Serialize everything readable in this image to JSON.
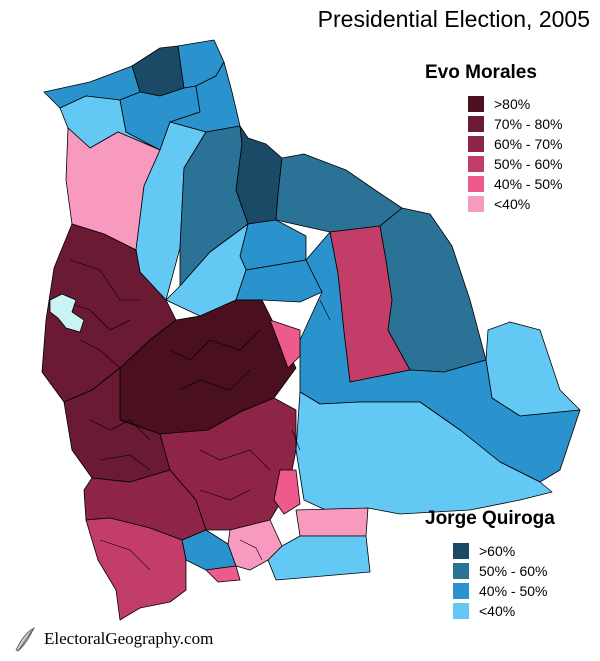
{
  "title": "Presidential Election, 2005",
  "morales": {
    "heading": "Evo Morales",
    "items": [
      {
        "label": ">80%",
        "color": "#4a1020"
      },
      {
        "label": "70% - 80%",
        "color": "#6b1a34"
      },
      {
        "label": "60% - 70%",
        "color": "#8e2446"
      },
      {
        "label": "50% - 60%",
        "color": "#c23e68"
      },
      {
        "label": "40% - 50%",
        "color": "#ef5a8c"
      },
      {
        "label": "<40%",
        "color": "#f89ac0"
      }
    ]
  },
  "quiroga": {
    "heading": "Jorge Quiroga",
    "items": [
      {
        "label": ">60%",
        "color": "#1b4a66"
      },
      {
        "label": "50% - 60%",
        "color": "#2a7296"
      },
      {
        "label": "40% - 50%",
        "color": "#2a92cc"
      },
      {
        "label": "<40%",
        "color": "#64c8f4"
      }
    ]
  },
  "map": {
    "border_color": "#000000",
    "lake_color": "#c8f4f4",
    "regions": [
      {
        "name": "far-north-tip",
        "color": "#1b4a66"
      },
      {
        "name": "north-pando-east",
        "color": "#2a92cc"
      },
      {
        "name": "north-pando-west",
        "color": "#2a92cc"
      },
      {
        "name": "pando-west",
        "color": "#64c8f4"
      },
      {
        "name": "pando-center",
        "color": "#2a92cc"
      },
      {
        "name": "pando-east",
        "color": "#2a92cc"
      },
      {
        "name": "la-paz-north",
        "color": "#f89ac0"
      },
      {
        "name": "beni-west",
        "color": "#64c8f4"
      },
      {
        "name": "beni-center",
        "color": "#2a7296"
      },
      {
        "name": "beni-dark",
        "color": "#1b4a66"
      },
      {
        "name": "beni-northeast",
        "color": "#2a7296"
      },
      {
        "name": "beni-south-a",
        "color": "#2a92cc"
      },
      {
        "name": "beni-south-b",
        "color": "#64c8f4"
      },
      {
        "name": "beni-south-c",
        "color": "#2a92cc"
      },
      {
        "name": "santa-cruz-pink",
        "color": "#c23e68"
      },
      {
        "name": "santa-cruz-north",
        "color": "#2a7296"
      },
      {
        "name": "santa-cruz-east",
        "color": "#64c8f4"
      },
      {
        "name": "santa-cruz-middle",
        "color": "#2a92cc"
      },
      {
        "name": "santa-cruz-south",
        "color": "#64c8f4"
      },
      {
        "name": "chuquisaca-east",
        "color": "#f89ac0"
      },
      {
        "name": "tarija-east",
        "color": "#64c8f4"
      },
      {
        "name": "tarija-center",
        "color": "#2a92cc"
      },
      {
        "name": "altiplano-core",
        "color": "#6b1a34"
      },
      {
        "name": "cochabamba",
        "color": "#4a1020"
      },
      {
        "name": "potosi-north",
        "color": "#6b1a34"
      },
      {
        "name": "potosi-south",
        "color": "#8e2446"
      },
      {
        "name": "potosi-southwest",
        "color": "#c23e68"
      },
      {
        "name": "chuquisaca",
        "color": "#8e2446"
      },
      {
        "name": "tarija-pink",
        "color": "#f89ac0"
      },
      {
        "name": "tarija-hot",
        "color": "#ef5a8c"
      },
      {
        "name": "santa-cruz-valley",
        "color": "#ef5a8c"
      }
    ]
  },
  "credit": {
    "text": "ElectoralGeography.com"
  }
}
